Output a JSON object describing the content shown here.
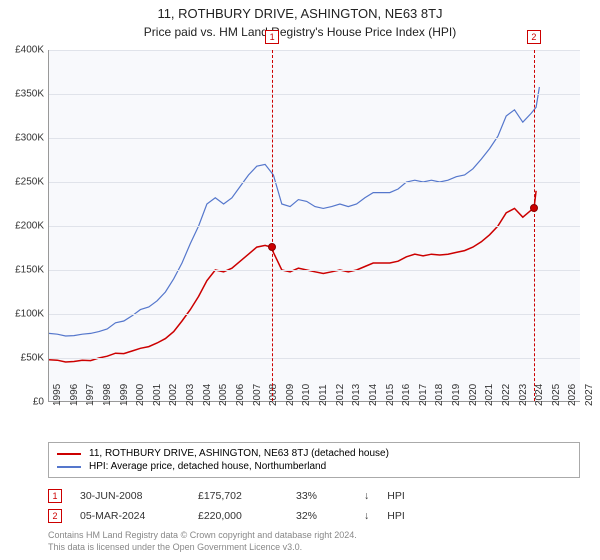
{
  "title_line1": "11, ROTHBURY DRIVE, ASHINGTON, NE63 8TJ",
  "title_line2": "Price paid vs. HM Land Registry's House Price Index (HPI)",
  "chart": {
    "type": "line",
    "background_color": "#f8f9fc",
    "grid_color": "#e0e3ea",
    "axis_color": "#999999",
    "label_color": "#333333",
    "label_fontsize": 10,
    "ylim": [
      0,
      400000
    ],
    "ytick_step": 50000,
    "ytick_labels": [
      "£0",
      "£50K",
      "£100K",
      "£150K",
      "£200K",
      "£250K",
      "£300K",
      "£350K",
      "£400K"
    ],
    "xlim": [
      1995,
      2027
    ],
    "xtick_step": 1,
    "xtick_labels": [
      "1995",
      "1996",
      "1997",
      "1998",
      "1999",
      "2000",
      "2001",
      "2002",
      "2003",
      "2004",
      "2005",
      "2006",
      "2007",
      "2008",
      "2009",
      "2010",
      "2011",
      "2012",
      "2013",
      "2014",
      "2015",
      "2016",
      "2017",
      "2018",
      "2019",
      "2020",
      "2021",
      "2022",
      "2023",
      "2024",
      "2025",
      "2026",
      "2027"
    ],
    "series": [
      {
        "name": "property",
        "label": "11, ROTHBURY DRIVE, ASHINGTON, NE63 8TJ (detached house)",
        "color": "#cc0000",
        "line_width": 1.5,
        "data": [
          [
            1995,
            48000
          ],
          [
            1995.5,
            47500
          ],
          [
            1996,
            45500
          ],
          [
            1996.5,
            46000
          ],
          [
            1997,
            47500
          ],
          [
            1997.5,
            47000
          ],
          [
            1998,
            50000
          ],
          [
            1998.5,
            52000
          ],
          [
            1999,
            55500
          ],
          [
            1999.5,
            55000
          ],
          [
            2000,
            58000
          ],
          [
            2000.5,
            61000
          ],
          [
            2001,
            63000
          ],
          [
            2001.5,
            67000
          ],
          [
            2002,
            72000
          ],
          [
            2002.5,
            80000
          ],
          [
            2003,
            92000
          ],
          [
            2003.5,
            105000
          ],
          [
            2004,
            120000
          ],
          [
            2004.5,
            138000
          ],
          [
            2005,
            150000
          ],
          [
            2005.5,
            148000
          ],
          [
            2006,
            152000
          ],
          [
            2006.5,
            160000
          ],
          [
            2007,
            168000
          ],
          [
            2007.5,
            176000
          ],
          [
            2008,
            178000
          ],
          [
            2008.42,
            175702
          ],
          [
            2008.5,
            170000
          ],
          [
            2009,
            150000
          ],
          [
            2009.5,
            148000
          ],
          [
            2010,
            152000
          ],
          [
            2010.5,
            150000
          ],
          [
            2011,
            148000
          ],
          [
            2011.5,
            146000
          ],
          [
            2012,
            148000
          ],
          [
            2012.5,
            150000
          ],
          [
            2013,
            148000
          ],
          [
            2013.5,
            150000
          ],
          [
            2014,
            154000
          ],
          [
            2014.5,
            158000
          ],
          [
            2015,
            158000
          ],
          [
            2015.5,
            158000
          ],
          [
            2016,
            160000
          ],
          [
            2016.5,
            165000
          ],
          [
            2017,
            168000
          ],
          [
            2017.5,
            166000
          ],
          [
            2018,
            168000
          ],
          [
            2018.5,
            167000
          ],
          [
            2019,
            168000
          ],
          [
            2019.5,
            170000
          ],
          [
            2020,
            172000
          ],
          [
            2020.5,
            176000
          ],
          [
            2021,
            182000
          ],
          [
            2021.5,
            190000
          ],
          [
            2022,
            200000
          ],
          [
            2022.5,
            215000
          ],
          [
            2023,
            220000
          ],
          [
            2023.5,
            210000
          ],
          [
            2024,
            218000
          ],
          [
            2024.17,
            220000
          ],
          [
            2024.3,
            240000
          ]
        ]
      },
      {
        "name": "hpi",
        "label": "HPI: Average price, detached house, Northumberland",
        "color": "#5577cc",
        "line_width": 1.2,
        "data": [
          [
            1995,
            78000
          ],
          [
            1995.5,
            77000
          ],
          [
            1996,
            75000
          ],
          [
            1996.5,
            75500
          ],
          [
            1997,
            77000
          ],
          [
            1997.5,
            78000
          ],
          [
            1998,
            80000
          ],
          [
            1998.5,
            83000
          ],
          [
            1999,
            90000
          ],
          [
            1999.5,
            92000
          ],
          [
            2000,
            98000
          ],
          [
            2000.5,
            105000
          ],
          [
            2001,
            108000
          ],
          [
            2001.5,
            115000
          ],
          [
            2002,
            125000
          ],
          [
            2002.5,
            140000
          ],
          [
            2003,
            158000
          ],
          [
            2003.5,
            180000
          ],
          [
            2004,
            200000
          ],
          [
            2004.5,
            225000
          ],
          [
            2005,
            232000
          ],
          [
            2005.5,
            225000
          ],
          [
            2006,
            232000
          ],
          [
            2006.5,
            245000
          ],
          [
            2007,
            258000
          ],
          [
            2007.5,
            268000
          ],
          [
            2008,
            270000
          ],
          [
            2008.5,
            258000
          ],
          [
            2009,
            225000
          ],
          [
            2009.5,
            222000
          ],
          [
            2010,
            230000
          ],
          [
            2010.5,
            228000
          ],
          [
            2011,
            222000
          ],
          [
            2011.5,
            220000
          ],
          [
            2012,
            222000
          ],
          [
            2012.5,
            225000
          ],
          [
            2013,
            222000
          ],
          [
            2013.5,
            225000
          ],
          [
            2014,
            232000
          ],
          [
            2014.5,
            238000
          ],
          [
            2015,
            238000
          ],
          [
            2015.5,
            238000
          ],
          [
            2016,
            242000
          ],
          [
            2016.5,
            250000
          ],
          [
            2017,
            252000
          ],
          [
            2017.5,
            250000
          ],
          [
            2018,
            252000
          ],
          [
            2018.5,
            250000
          ],
          [
            2019,
            252000
          ],
          [
            2019.5,
            256000
          ],
          [
            2020,
            258000
          ],
          [
            2020.5,
            265000
          ],
          [
            2021,
            276000
          ],
          [
            2021.5,
            288000
          ],
          [
            2022,
            302000
          ],
          [
            2022.5,
            325000
          ],
          [
            2023,
            332000
          ],
          [
            2023.5,
            318000
          ],
          [
            2024,
            328000
          ],
          [
            2024.3,
            335000
          ],
          [
            2024.5,
            358000
          ]
        ]
      }
    ],
    "markers": [
      {
        "id": "1",
        "x": 2008.42,
        "y": 175702
      },
      {
        "id": "2",
        "x": 2024.17,
        "y": 220000
      }
    ]
  },
  "legend": {
    "border_color": "#aaaaaa"
  },
  "sales": [
    {
      "id": "1",
      "date": "30-JUN-2008",
      "price": "£175,702",
      "delta": "33%",
      "arrow": "↓",
      "suffix": "HPI"
    },
    {
      "id": "2",
      "date": "05-MAR-2024",
      "price": "£220,000",
      "delta": "32%",
      "arrow": "↓",
      "suffix": "HPI"
    }
  ],
  "footer_line1": "Contains HM Land Registry data © Crown copyright and database right 2024.",
  "footer_line2": "This data is licensed under the Open Government Licence v3.0."
}
